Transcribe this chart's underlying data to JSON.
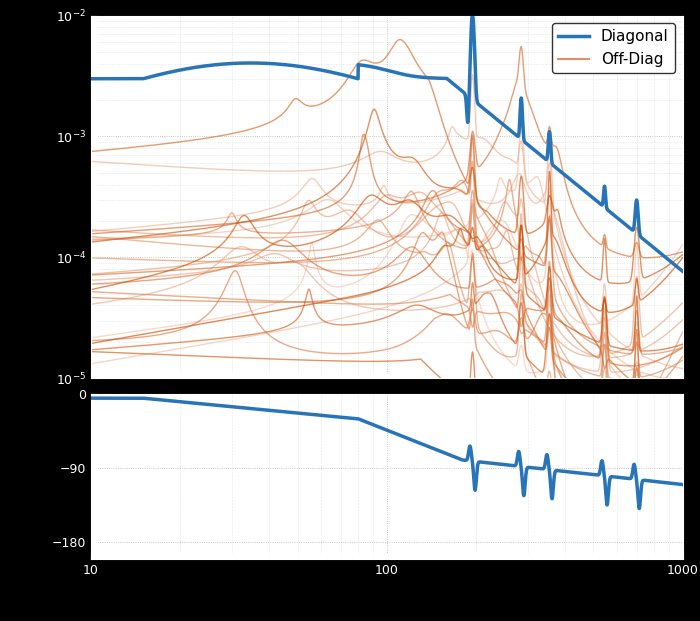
{
  "fig_width": 7.0,
  "fig_height": 6.21,
  "dpi": 100,
  "background_color": "#000000",
  "axes_facecolor": "#ffffff",
  "grid_color": "#b0b0b0",
  "diagonal_color": "#2874b8",
  "diagonal_linewidth": 2.5,
  "offdiag_alpha": 0.65,
  "offdiag_linewidth": 1.0,
  "freq_min": 10,
  "freq_max": 1000,
  "mag_ylim": [
    1e-05,
    0.01
  ],
  "legend_diagonal": "Diagonal",
  "legend_offdiag": "Off-Diag",
  "phase_ylim": [
    -200,
    0
  ],
  "phase_yticks": [
    -180,
    -90,
    0
  ],
  "n_offdiag": 25
}
